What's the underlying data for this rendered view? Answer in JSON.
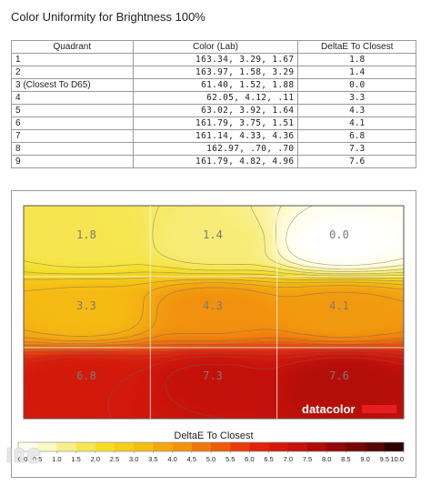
{
  "title": "Color Uniformity for Brightness 100%",
  "table": {
    "headers": [
      "Quadrant",
      "Color (Lab)",
      "DeltaE To Closest"
    ],
    "rows": [
      {
        "quadrant": "1",
        "lab": "163.34,    3.29,    1.67",
        "delta": "1.8"
      },
      {
        "quadrant": "2",
        "lab": "163.97,    1.58,    3.29",
        "delta": "1.4"
      },
      {
        "quadrant": "3 (Closest To D65)",
        "lab": "61.40,    1.52,    1.88",
        "delta": "0.0"
      },
      {
        "quadrant": "4",
        "lab": "62.05,    4.12,     .11",
        "delta": "3.3"
      },
      {
        "quadrant": "5",
        "lab": "63.02,    3.92,    1.64",
        "delta": "4.3"
      },
      {
        "quadrant": "6",
        "lab": "161.79,    3.75,    1.51",
        "delta": "4.1"
      },
      {
        "quadrant": "7",
        "lab": "161.14,    4.33,    4.36",
        "delta": "6.8"
      },
      {
        "quadrant": "8",
        "lab": "162.97,     .70,     .70",
        "delta": "7.3"
      },
      {
        "quadrant": "9",
        "lab": "161.79,    4.82,    4.96",
        "delta": "7.6"
      }
    ]
  },
  "chart_data": {
    "type": "heatmap",
    "title": "",
    "grid": {
      "rows": 3,
      "cols": 3,
      "values": [
        [
          1.8,
          1.4,
          0.0
        ],
        [
          3.3,
          4.3,
          4.1
        ],
        [
          6.8,
          7.3,
          7.6
        ]
      ],
      "labels": [
        [
          "1.8",
          "1.4",
          "0.0"
        ],
        [
          "3.3",
          "4.3",
          "4.1"
        ],
        [
          "6.8",
          "7.3",
          "7.6"
        ]
      ]
    },
    "brand": "datacolor",
    "legend": {
      "title": "DeltaE To Closest",
      "ticks": [
        "0.0",
        "0.5",
        "1.0",
        "1.5",
        "2.0",
        "2.5",
        "3.0",
        "3.5",
        "4.0",
        "4.5",
        "5.0",
        "5.5",
        "6.0",
        "6.5",
        "7.0",
        "7.5",
        "8.0",
        "8.5",
        "9.0",
        "9.5",
        "10.0"
      ],
      "range": [
        0,
        10
      ]
    },
    "colors": {
      "low": "#ffffff",
      "yellow": "#f4e11a",
      "orange": "#f08c0c",
      "red": "#e31a0e",
      "dark_red": "#8a0808",
      "black": "#1a0000",
      "contour": "#666666",
      "label": "#7a7a7a"
    }
  }
}
